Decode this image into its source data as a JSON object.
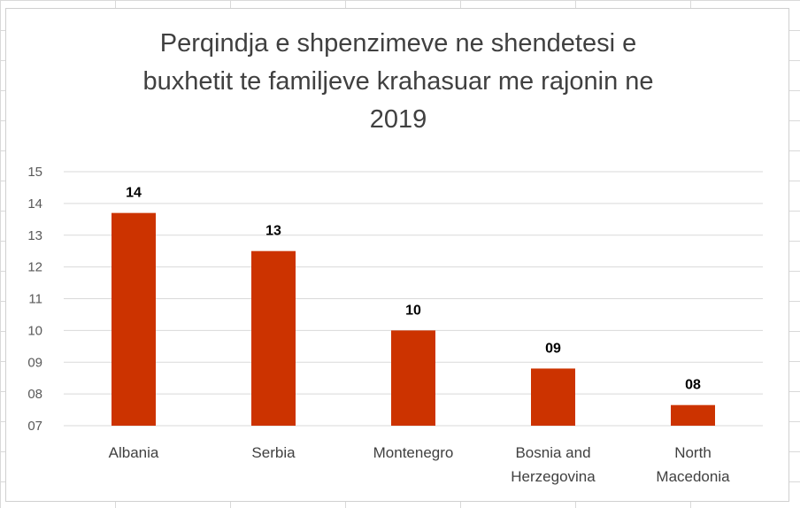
{
  "chart_data": {
    "type": "bar",
    "title": "Perqindja e shpenzimeve ne shendetesi e buxhetit te familjeve krahasuar me rajonin ne 2019",
    "title_lines": [
      "Perqindja e shpenzimeve ne shendetesi e",
      "buxhetit te familjeve krahasuar me rajonin ne",
      "2019"
    ],
    "categories": [
      "Albania",
      "Serbia",
      "Montenegro",
      "Bosnia and Herzegovina",
      "North Macedonia"
    ],
    "category_lines": [
      [
        "Albania"
      ],
      [
        "Serbia"
      ],
      [
        "Montenegro"
      ],
      [
        "Bosnia and",
        "Herzegovina"
      ],
      [
        "North",
        "Macedonia"
      ]
    ],
    "values": [
      13.7,
      12.5,
      10.0,
      8.8,
      7.65
    ],
    "data_labels": [
      "14",
      "13",
      "10",
      "09",
      "08"
    ],
    "y_ticks": [
      "07",
      "08",
      "09",
      "10",
      "11",
      "12",
      "13",
      "14",
      "15"
    ],
    "ylim": [
      7,
      15
    ],
    "grid": true,
    "legend": "none",
    "bar_color": "#cc3300",
    "gridline_color": "#d9d9d9"
  }
}
